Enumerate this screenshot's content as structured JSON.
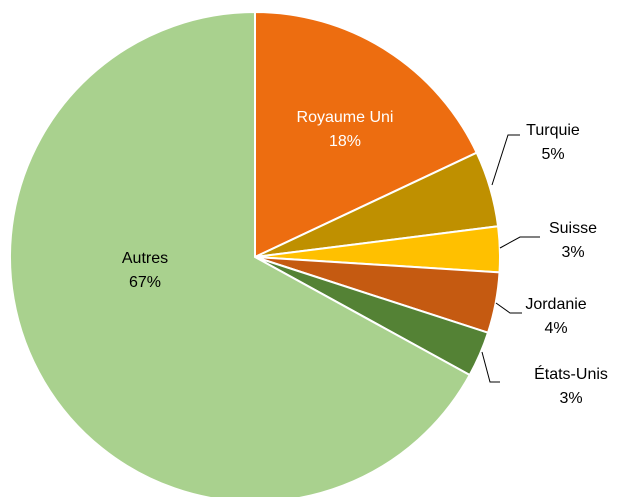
{
  "chart_data": {
    "type": "pie",
    "categories": [
      "Royaume Uni",
      "Turquie",
      "Suisse",
      "Jordanie",
      "États-Unis",
      "Autres"
    ],
    "values": [
      18,
      5,
      3,
      4,
      3,
      67
    ],
    "value_labels": [
      "18%",
      "5%",
      "3%",
      "4%",
      "3%",
      "67%"
    ],
    "colors": [
      "#ed6d10",
      "#bf9000",
      "#ffc000",
      "#c55a11",
      "#548235",
      "#a9d18e"
    ]
  }
}
